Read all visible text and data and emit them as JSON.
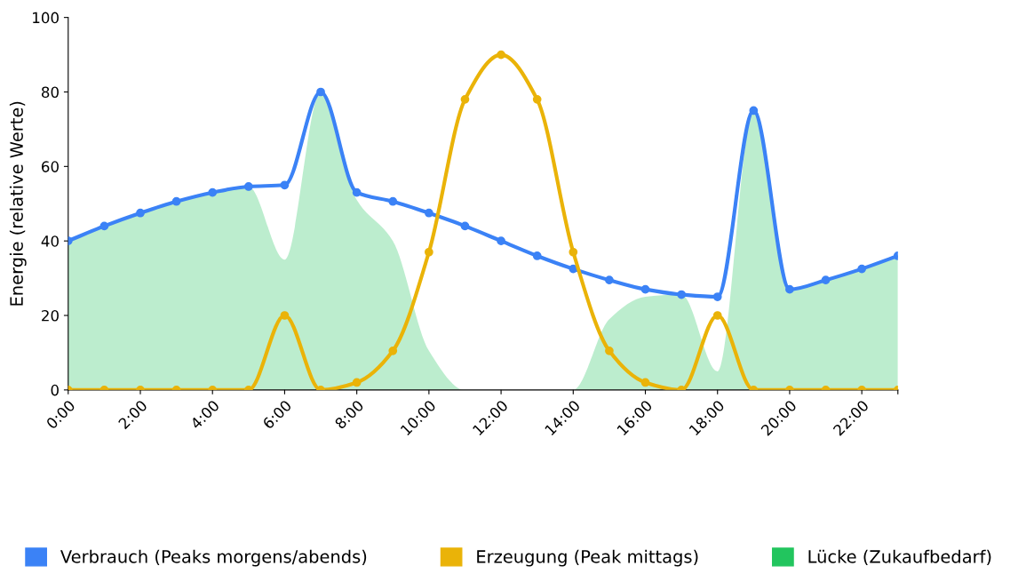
{
  "chart_data": {
    "type": "line",
    "ylabel": "Energie (relative Werte)",
    "x": [
      0,
      1,
      2,
      3,
      4,
      5,
      6,
      7,
      8,
      9,
      10,
      11,
      12,
      13,
      14,
      15,
      16,
      17,
      18,
      19,
      20,
      21,
      22,
      23
    ],
    "series": [
      {
        "name": "Lücke (Zukaufbedarf)",
        "type": "area",
        "color": "#22c55e",
        "marker": "none",
        "values": [
          40,
          44,
          47.5,
          50.6,
          53,
          54.6,
          35,
          80,
          51,
          40,
          10.5,
          0,
          0,
          0,
          0,
          19,
          25,
          25.6,
          5,
          75,
          27,
          29.5,
          32.5,
          36
        ]
      },
      {
        "name": "Verbrauch (Peaks morgens/abends)",
        "color": "#3b82f6",
        "values": [
          40,
          44,
          47.5,
          50.6,
          53,
          54.6,
          55,
          80,
          53,
          50.6,
          47.5,
          44,
          40,
          36,
          32.5,
          29.5,
          27,
          25.6,
          25,
          75,
          27,
          29.5,
          32.5,
          36
        ]
      },
      {
        "name": "Erzeugung (Peak mittags)",
        "color": "#eab308",
        "values": [
          0,
          0,
          0,
          0,
          0,
          0,
          20,
          0,
          2,
          10.5,
          37,
          78,
          90,
          78,
          37,
          10.5,
          2,
          0,
          20,
          0,
          0,
          0,
          0,
          0
        ]
      }
    ],
    "xlim": [
      0,
      23
    ],
    "ylim": [
      0,
      100
    ],
    "xticks": [
      {
        "value": 0,
        "label": "0:00"
      },
      {
        "value": 2,
        "label": "2:00"
      },
      {
        "value": 4,
        "label": "4:00"
      },
      {
        "value": 6,
        "label": "6:00"
      },
      {
        "value": 8,
        "label": "8:00"
      },
      {
        "value": 10,
        "label": "10:00"
      },
      {
        "value": 12,
        "label": "12:00"
      },
      {
        "value": 14,
        "label": "14:00"
      },
      {
        "value": 16,
        "label": "16:00"
      },
      {
        "value": 18,
        "label": "18:00"
      },
      {
        "value": 20,
        "label": "20:00"
      },
      {
        "value": 22,
        "label": "22:00"
      },
      {
        "value": 23,
        "label": null
      }
    ],
    "yticks": [
      0,
      20,
      40,
      60,
      80,
      100
    ],
    "grid": false,
    "legend": "bottom",
    "marker": "circle",
    "line_style": "solid"
  }
}
